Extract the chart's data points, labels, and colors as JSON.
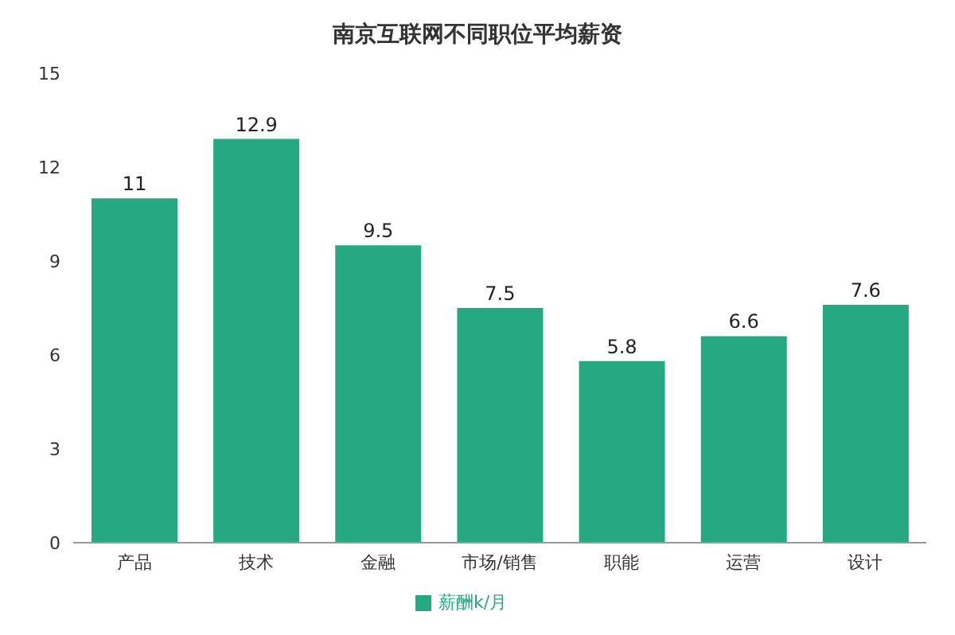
{
  "chart_data": {
    "type": "bar",
    "title": "南京互联网不同职位平均薪资",
    "categories": [
      "产品",
      "技术",
      "金融",
      "市场/销售",
      "职能",
      "运营",
      "设计"
    ],
    "series": [
      {
        "name": "薪酬k/月",
        "color": "#26a882",
        "values": [
          11,
          12.9,
          9.5,
          7.5,
          5.8,
          6.6,
          7.6
        ]
      }
    ],
    "ylim": [
      0,
      15
    ],
    "yticks": [
      0,
      3,
      6,
      9,
      12,
      15
    ],
    "data_labels": true,
    "legend": "bottom"
  }
}
